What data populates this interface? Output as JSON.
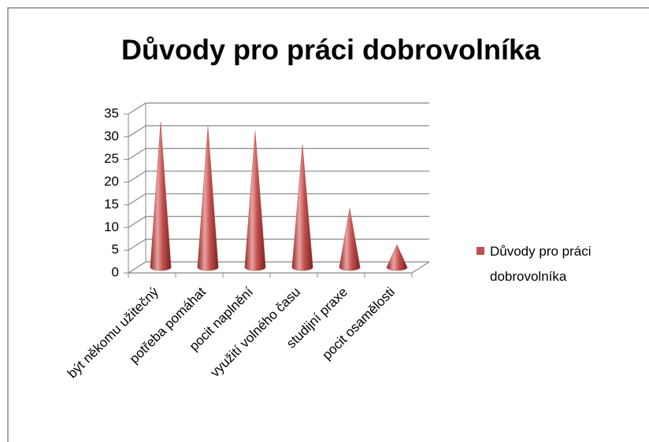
{
  "chart_data": {
    "type": "bar",
    "title": "Důvody pro práci dobrovolníka",
    "categories": [
      "být někomu užitečný",
      "potřeba pomáhat",
      "pocit naplnění",
      "využití volného času",
      "studijní praxe",
      "pocit osamělosti"
    ],
    "series": [
      {
        "name": "Důvody pro práci dobrovolníka",
        "color": "#c0504d",
        "values": [
          32,
          31,
          30,
          27,
          13,
          5
        ]
      }
    ],
    "ylim": [
      0,
      35
    ],
    "yticks": [
      0,
      5,
      10,
      15,
      20,
      25,
      30,
      35
    ],
    "grid": true,
    "legend": "right"
  }
}
